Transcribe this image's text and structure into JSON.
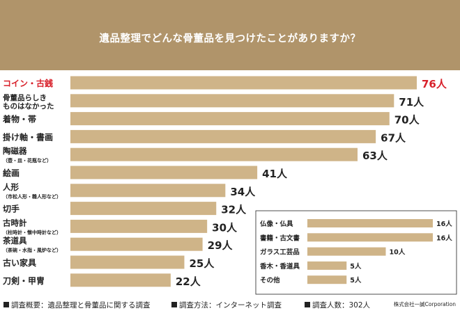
{
  "title": "遺品整理でどんな骨董品を見つけたことがありますか？",
  "colors": {
    "header": "#b0946a",
    "bar": "#cfb488",
    "highlight": "#d8202a",
    "text": "#222222"
  },
  "chart_data": {
    "type": "bar",
    "orientation": "horizontal",
    "title": "遺品整理でどんな骨董品を見つけたことがありますか？",
    "unit": "人",
    "xlim": [
      0,
      80
    ],
    "series": [
      {
        "name": "main",
        "categories": [
          {
            "label": [
              "コイン・古銭"
            ],
            "value": 76,
            "highlight": true
          },
          {
            "label": [
              "骨董品らしき",
              "ものはなかった"
            ],
            "value": 71
          },
          {
            "label": [
              "着物・帯"
            ],
            "value": 70
          },
          {
            "label": [
              "掛け軸・書画"
            ],
            "value": 67
          },
          {
            "label": [
              "陶磁器",
              "（壺・皿・花瓶など）"
            ],
            "value": 63
          },
          {
            "label": [
              "絵画"
            ],
            "value": 41
          },
          {
            "label": [
              "人形",
              "（市松人形・雛人形など）"
            ],
            "value": 34
          },
          {
            "label": [
              "切手"
            ],
            "value": 32
          },
          {
            "label": [
              "古時計",
              "（柱時計・懐中時計など）"
            ],
            "value": 30
          },
          {
            "label": [
              "茶道具",
              "（茶碗・水指・風炉など）"
            ],
            "value": 29
          },
          {
            "label": [
              "古い家具"
            ],
            "value": 25
          },
          {
            "label": [
              "刀剣・甲冑"
            ],
            "value": 22
          }
        ]
      },
      {
        "name": "inset",
        "categories": [
          {
            "label": "仏像・仏具",
            "value": 16
          },
          {
            "label": "書籍・古文書",
            "value": 16
          },
          {
            "label": "ガラス工芸品",
            "value": 10
          },
          {
            "label": "香木・香道具",
            "value": 5
          },
          {
            "label": "その他",
            "value": 5
          }
        ]
      }
    ]
  },
  "footer": {
    "survey_summary": "調査概要：遺品整理と骨董品に関する調査",
    "survey_method": "調査方法：インターネット調査",
    "respondents": "調査人数：302人",
    "credit": "株式会社一誠Corporation"
  }
}
